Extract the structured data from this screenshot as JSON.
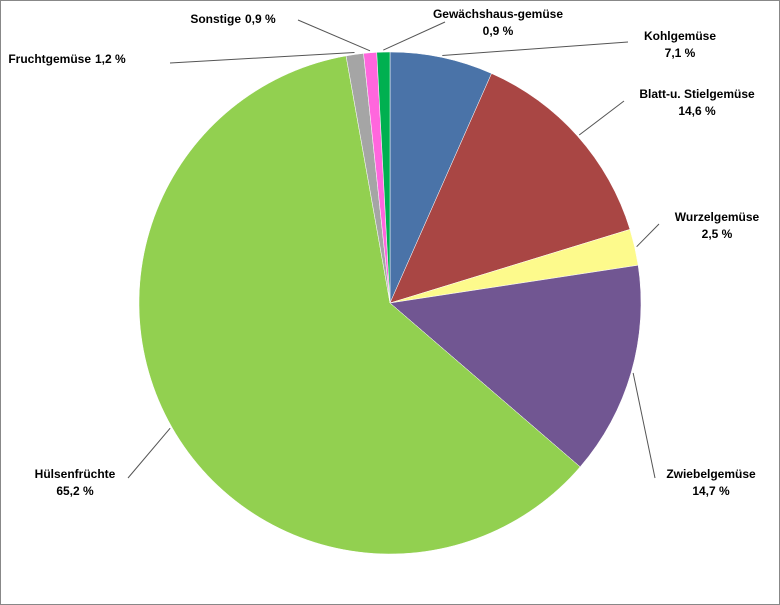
{
  "chart_data": {
    "type": "pie",
    "categories": [
      "Kohlgemüse",
      "Blatt-u. Stielgemüse",
      "Wurzelgemüse",
      "Zwiebelgemüse",
      "Hülsenfrüchte",
      "Fruchtgemüse",
      "Sonstige",
      "Gewächshaus-gemüse"
    ],
    "values": [
      7.1,
      14.6,
      2.5,
      14.7,
      65.2,
      1.2,
      0.9,
      0.9
    ],
    "value_labels": [
      "7,1 %",
      "14,6 %",
      "2,5 %",
      "14,7 %",
      "65,2 %",
      "1,2 %",
      "0,9 %",
      "0,9 %"
    ],
    "colors": [
      "#4a73a8",
      "#a94644",
      "#fdfa8c",
      "#715692",
      "#92d050",
      "#a5a5a5",
      "#ff66dd",
      "#00b050"
    ]
  }
}
